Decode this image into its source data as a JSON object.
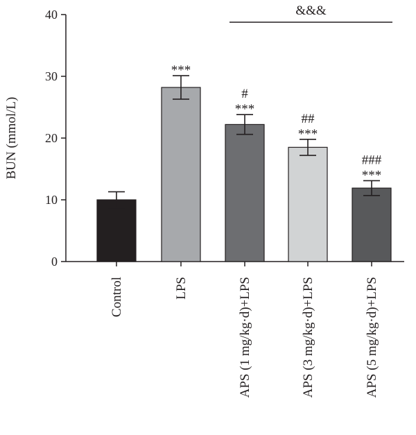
{
  "chart_data": {
    "type": "bar",
    "ylabel": "BUN (mmol/L)",
    "ylim": [
      0,
      40
    ],
    "yticks": [
      0,
      10,
      20,
      30,
      40
    ],
    "categories": [
      "Control",
      "LPS",
      "APS (1 mg/kg·d)+LPS",
      "APS (3 mg/kg·d)+LPS",
      "APS (5 mg/kg·d)+LPS"
    ],
    "values": [
      10.0,
      28.2,
      22.2,
      18.5,
      11.9
    ],
    "errors": [
      1.3,
      1.9,
      1.6,
      1.3,
      1.2
    ],
    "bar_colors": [
      "#231f20",
      "#a7a9ac",
      "#6d6e71",
      "#d1d3d4",
      "#58595b"
    ],
    "significance_above": [
      "",
      "***",
      "***",
      "***",
      "***"
    ],
    "significance_top": [
      "",
      "",
      "#",
      "##",
      "###"
    ],
    "bracket": {
      "label": "&&&",
      "from_category": 2,
      "to_category": 4
    }
  }
}
